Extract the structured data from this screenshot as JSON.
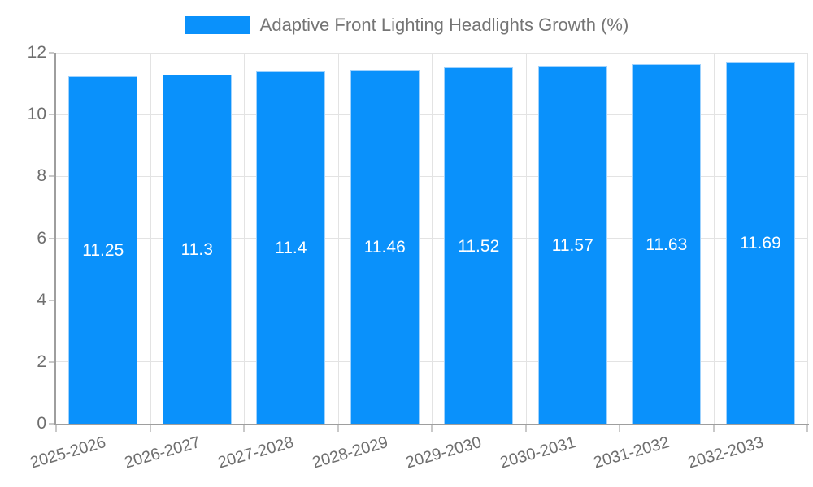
{
  "legend": {
    "label": "Adaptive Front Lighting Headlights Growth (%)"
  },
  "chart_data": {
    "type": "bar",
    "title": "Adaptive Front Lighting Headlights Growth (%)",
    "categories": [
      "2025-2026",
      "2026-2027",
      "2027-2028",
      "2028-2029",
      "2029-2030",
      "2030-2031",
      "2031-2032",
      "2032-2033"
    ],
    "values": [
      11.25,
      11.3,
      11.4,
      11.46,
      11.52,
      11.57,
      11.63,
      11.69
    ],
    "value_labels": [
      "11.25",
      "11.3",
      "11.4",
      "11.46",
      "11.52",
      "11.57",
      "11.63",
      "11.69"
    ],
    "xlabel": "",
    "ylabel": "",
    "ylim": [
      0,
      12
    ],
    "yticks": [
      0,
      2,
      4,
      6,
      8,
      10,
      12
    ],
    "grid": true,
    "legend_position": "top-center",
    "x_label_rotation_deg": -16,
    "colors": {
      "bar": "#0a91fb",
      "bar_border": "#9fd2fd",
      "grid": "#e3e3e3",
      "axis": "#9e9e9e",
      "tick": "#c9c9c9",
      "axis_text": "#6e6e6e",
      "value_text": "#ffffff",
      "legend_text": "#757575",
      "background": "#ffffff"
    }
  }
}
